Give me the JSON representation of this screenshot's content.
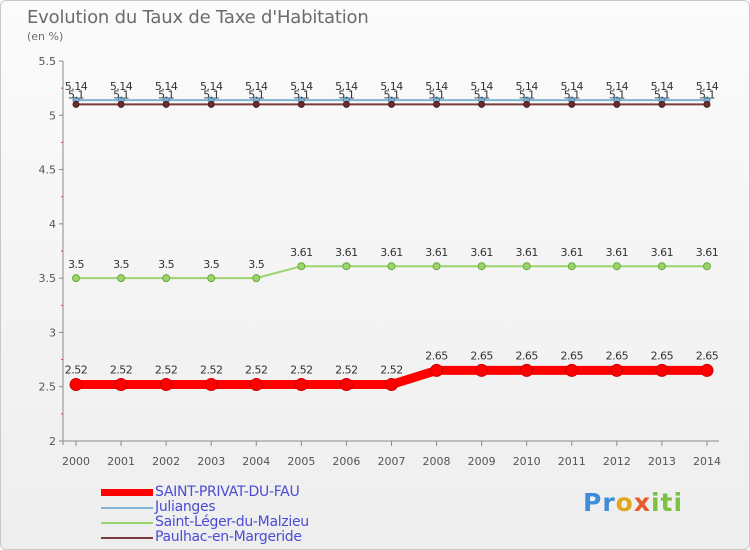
{
  "title": "Evolution du Taux de Taxe d'Habitation",
  "subtitle": "(en %)",
  "logo": {
    "p": "Pr",
    "o": "o",
    "x": "x",
    "i": "iti"
  },
  "colors": {
    "saint_privat": "#ff0000",
    "julianges": "#7fb3d5",
    "saint_leger": "#9ad46a",
    "paulhac": "#7a3c3c"
  },
  "chart_data": {
    "type": "line",
    "title": "Evolution du Taux de Taxe d'Habitation",
    "ylabel": "(en %)",
    "xlabel": "",
    "ylim": [
      2,
      5.5
    ],
    "yticks": [
      2,
      2.5,
      3,
      3.5,
      4,
      4.5,
      5,
      5.5
    ],
    "ytick_labels": [
      "2",
      "2.5",
      "3",
      "3.5",
      "4",
      "4.5",
      "5",
      "5.5"
    ],
    "categories": [
      "2000",
      "2001",
      "2002",
      "2003",
      "2004",
      "2005",
      "2006",
      "2007",
      "2008",
      "2009",
      "2010",
      "2011",
      "2012",
      "2013",
      "2014"
    ],
    "series": [
      {
        "name": "SAINT-PRIVAT-DU-FAU",
        "key": "saint_privat",
        "values": [
          2.52,
          2.52,
          2.52,
          2.52,
          2.52,
          2.52,
          2.52,
          2.52,
          2.65,
          2.65,
          2.65,
          2.65,
          2.65,
          2.65,
          2.65
        ],
        "labels": [
          "2.52",
          "2.52",
          "2.52",
          "2.52",
          "2.52",
          "2.52",
          "2.52",
          "2.52",
          "2.65",
          "2.65",
          "2.65",
          "2.65",
          "2.65",
          "2.65",
          "2.65"
        ]
      },
      {
        "name": "Julianges",
        "key": "julianges",
        "values": [
          5.14,
          5.14,
          5.14,
          5.14,
          5.14,
          5.14,
          5.14,
          5.14,
          5.14,
          5.14,
          5.14,
          5.14,
          5.14,
          5.14,
          5.14
        ],
        "labels": [
          "5.14",
          "5.14",
          "5.14",
          "5.14",
          "5.14",
          "5.14",
          "5.14",
          "5.14",
          "5.14",
          "5.14",
          "5.14",
          "5.14",
          "5.14",
          "5.14",
          "5.14"
        ]
      },
      {
        "name": "Saint-Léger-du-Malzieu",
        "key": "saint_leger",
        "values": [
          3.5,
          3.5,
          3.5,
          3.5,
          3.5,
          3.61,
          3.61,
          3.61,
          3.61,
          3.61,
          3.61,
          3.61,
          3.61,
          3.61,
          3.61
        ],
        "labels": [
          "3.5",
          "3.5",
          "3.5",
          "3.5",
          "3.5",
          "3.61",
          "3.61",
          "3.61",
          "3.61",
          "3.61",
          "3.61",
          "3.61",
          "3.61",
          "3.61",
          "3.61"
        ]
      },
      {
        "name": "Paulhac-en-Margeride",
        "key": "paulhac",
        "values": [
          5.1,
          5.1,
          5.1,
          5.1,
          5.1,
          5.1,
          5.1,
          5.1,
          5.1,
          5.1,
          5.1,
          5.1,
          5.1,
          5.1,
          5.1
        ],
        "labels": [
          "5.1",
          "5.1",
          "5.1",
          "5.1",
          "5.1",
          "5.1",
          "5.1",
          "5.1",
          "5.1",
          "5.1",
          "5.1",
          "5.1",
          "5.1",
          "5.1",
          "5.1"
        ]
      }
    ],
    "legend": [
      "SAINT-PRIVAT-DU-FAU",
      "Julianges",
      "Saint-Léger-du-Malzieu",
      "Paulhac-en-Margeride"
    ],
    "legend_position": "bottom-left",
    "grid": false
  }
}
